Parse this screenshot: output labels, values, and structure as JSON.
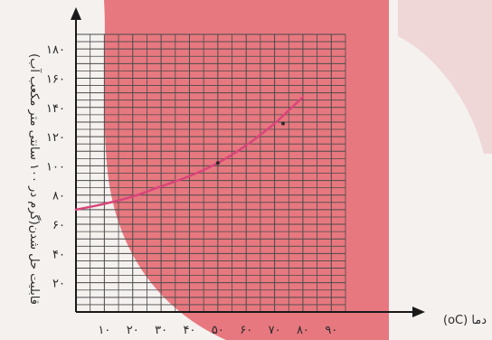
{
  "chart_data": {
    "type": "line",
    "xlabel": "(oC) دما",
    "ylabel": "قابلیت حل شدن(گرم در ۱۰۰ سانتی متر مکعب آب)",
    "xlim": [
      0,
      95
    ],
    "ylim": [
      0,
      190
    ],
    "x_ticks": [
      10,
      20,
      30,
      40,
      50,
      60,
      70,
      80,
      90
    ],
    "x_tick_labels": [
      "۱۰",
      "۲۰",
      "۳۰",
      "۴۰",
      "۵۰",
      "۶۰",
      "۷۰",
      "۸۰",
      "۹۰"
    ],
    "y_ticks": [
      20,
      40,
      60,
      80,
      100,
      120,
      140,
      160,
      180
    ],
    "y_tick_labels": [
      "۲۰",
      "۴۰",
      "۶۰",
      "۸۰",
      "۱۰۰",
      "۱۲۰",
      "۱۴۰",
      "۱۶۰",
      "۱۸۰"
    ],
    "grid": true,
    "series": [
      {
        "color": "#d9457a",
        "points": [
          [
            0,
            70
          ],
          [
            10,
            74
          ],
          [
            20,
            79
          ],
          [
            30,
            86
          ],
          [
            40,
            93
          ],
          [
            50,
            102
          ],
          [
            60,
            114
          ],
          [
            70,
            129
          ],
          [
            75,
            138
          ],
          [
            80,
            147
          ]
        ]
      }
    ],
    "markers": [
      {
        "x": 50,
        "y": 102
      },
      {
        "x": 73,
        "y": 129
      }
    ],
    "colors": {
      "curve": "#d9457a",
      "grid": "#4a4a4a",
      "axis": "#1a1a1a",
      "watermark": "#e56a72",
      "background": "#f4f1ef"
    }
  }
}
